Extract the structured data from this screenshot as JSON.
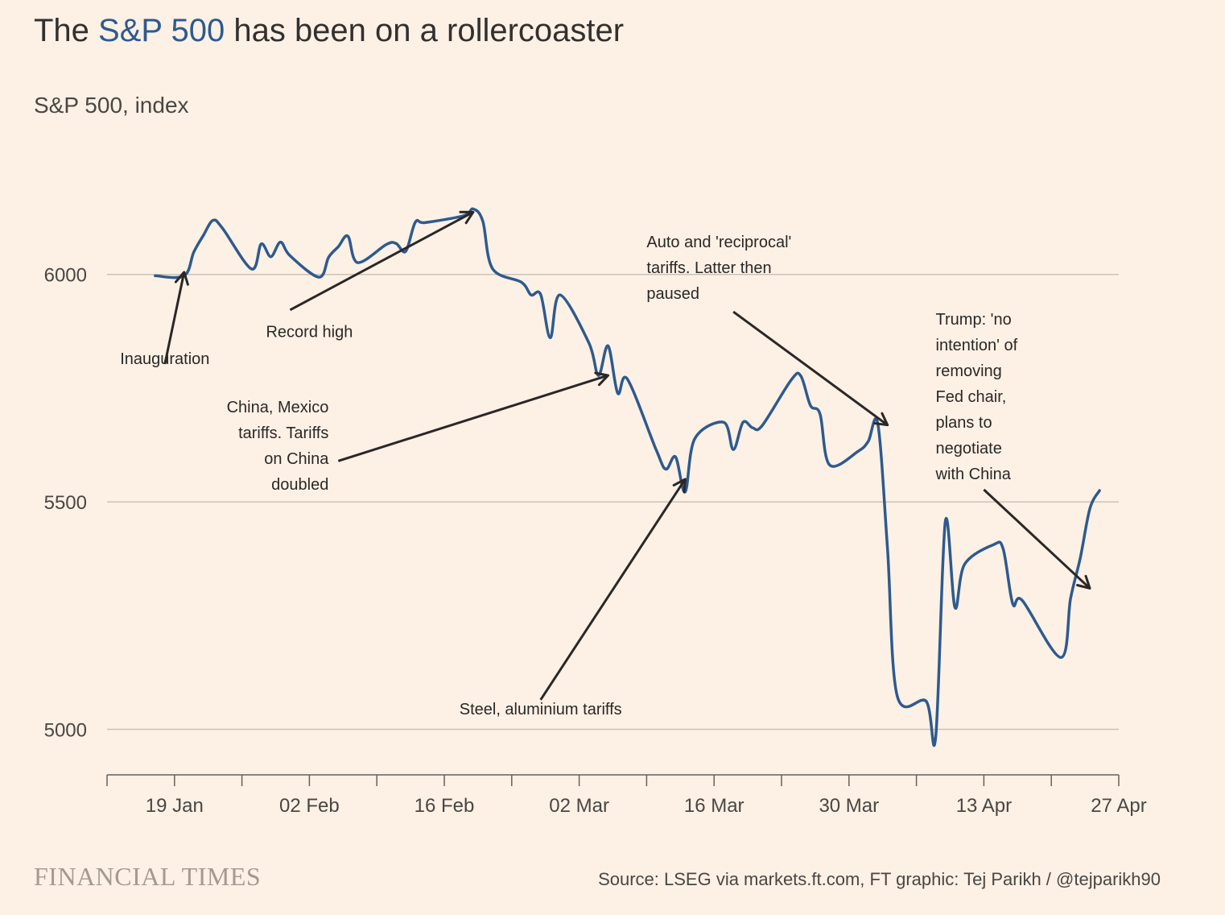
{
  "title": {
    "prefix": "The ",
    "highlight": "S&P 500",
    "suffix": " has been on a rollercoaster"
  },
  "subtitle": "S&P 500, index",
  "footer": {
    "logo": "FINANCIAL TIMES",
    "source": "Source: LSEG via markets.ft.com, FT graphic: Tej Parikh / @tejparikh90"
  },
  "colors": {
    "series": "#2e5a8e",
    "background": "#fdf1e6",
    "annotation": "#2b2726"
  },
  "chart_data": {
    "type": "line",
    "title": "The S&P 500 has been on a rollercoaster",
    "ylabel": "S&P 500, index",
    "ylim": [
      4900,
      6320
    ],
    "yticks": [
      5000,
      5500,
      6000
    ],
    "xlim": [
      "2025-01-12",
      "2025-04-27"
    ],
    "xticks": [
      {
        "date": "2025-01-19",
        "label": "19 Jan"
      },
      {
        "date": "2025-02-02",
        "label": "02 Feb"
      },
      {
        "date": "2025-02-16",
        "label": "16 Feb"
      },
      {
        "date": "2025-03-02",
        "label": "02 Mar"
      },
      {
        "date": "2025-03-16",
        "label": "16 Mar"
      },
      {
        "date": "2025-03-30",
        "label": "30 Mar"
      },
      {
        "date": "2025-04-13",
        "label": "13 Apr"
      },
      {
        "date": "2025-04-27",
        "label": "27 Apr"
      }
    ],
    "grid": true,
    "series": [
      {
        "name": "",
        "points": [
          [
            "2025-01-17",
            5997
          ],
          [
            "2025-01-20",
            5997
          ],
          [
            "2025-01-21",
            6049
          ],
          [
            "2025-01-22",
            6086
          ],
          [
            "2025-01-23",
            6119
          ],
          [
            "2025-01-24",
            6101
          ],
          [
            "2025-01-27",
            6012
          ],
          [
            "2025-01-28",
            6067
          ],
          [
            "2025-01-29",
            6039
          ],
          [
            "2025-01-30",
            6071
          ],
          [
            "2025-01-31",
            6041
          ],
          [
            "2025-02-03",
            5994
          ],
          [
            "2025-02-04",
            6038
          ],
          [
            "2025-02-05",
            6061
          ],
          [
            "2025-02-06",
            6084
          ],
          [
            "2025-02-07",
            6026
          ],
          [
            "2025-02-10",
            6066
          ],
          [
            "2025-02-11",
            6068
          ],
          [
            "2025-02-12",
            6051
          ],
          [
            "2025-02-13",
            6115
          ],
          [
            "2025-02-14",
            6114
          ],
          [
            "2025-02-18",
            6129
          ],
          [
            "2025-02-19",
            6144
          ],
          [
            "2025-02-20",
            6117
          ],
          [
            "2025-02-21",
            6013
          ],
          [
            "2025-02-24",
            5983
          ],
          [
            "2025-02-25",
            5955
          ],
          [
            "2025-02-26",
            5956
          ],
          [
            "2025-02-27",
            5861
          ],
          [
            "2025-02-28",
            5955
          ],
          [
            "2025-03-03",
            5850
          ],
          [
            "2025-03-04",
            5778
          ],
          [
            "2025-03-05",
            5843
          ],
          [
            "2025-03-06",
            5739
          ],
          [
            "2025-03-07",
            5770
          ],
          [
            "2025-03-10",
            5614
          ],
          [
            "2025-03-11",
            5572
          ],
          [
            "2025-03-12",
            5599
          ],
          [
            "2025-03-13",
            5522
          ],
          [
            "2025-03-14",
            5639
          ],
          [
            "2025-03-17",
            5675
          ],
          [
            "2025-03-18",
            5615
          ],
          [
            "2025-03-19",
            5675
          ],
          [
            "2025-03-20",
            5663
          ],
          [
            "2025-03-21",
            5668
          ],
          [
            "2025-03-24",
            5768
          ],
          [
            "2025-03-25",
            5777
          ],
          [
            "2025-03-26",
            5712
          ],
          [
            "2025-03-27",
            5693
          ],
          [
            "2025-03-28",
            5581
          ],
          [
            "2025-03-31",
            5612
          ],
          [
            "2025-04-01",
            5633
          ],
          [
            "2025-04-02",
            5671
          ],
          [
            "2025-04-03",
            5397
          ],
          [
            "2025-04-04",
            5074
          ],
          [
            "2025-04-07",
            5062
          ],
          [
            "2025-04-08",
            4983
          ],
          [
            "2025-04-09",
            5457
          ],
          [
            "2025-04-10",
            5268
          ],
          [
            "2025-04-11",
            5363
          ],
          [
            "2025-04-14",
            5406
          ],
          [
            "2025-04-15",
            5397
          ],
          [
            "2025-04-16",
            5276
          ],
          [
            "2025-04-17",
            5283
          ],
          [
            "2025-04-21",
            5158
          ],
          [
            "2025-04-22",
            5288
          ],
          [
            "2025-04-23",
            5376
          ],
          [
            "2025-04-24",
            5485
          ],
          [
            "2025-04-25",
            5525
          ]
        ]
      }
    ],
    "annotations": [
      {
        "text": [
          "Inauguration"
        ],
        "anchor": "middle",
        "label_at": [
          "2025-01-18",
          5803
        ],
        "arrow_from": [
          "2025-01-18",
          5803
        ],
        "arrow_to": [
          "2025-01-20",
          6005
        ]
      },
      {
        "text": [
          "Record high"
        ],
        "anchor": "middle",
        "label_at": [
          "2025-02-02",
          5862
        ],
        "arrow_from": [
          "2025-01-31",
          5922
        ],
        "arrow_to": [
          "2025-02-19",
          6137
        ]
      },
      {
        "text": [
          "China, Mexico",
          "tariffs. Tariffs",
          "on China",
          "doubled"
        ],
        "anchor": "end",
        "label_at": [
          "2025-02-04",
          5697
        ],
        "arrow_from": [
          "2025-02-05",
          5590
        ],
        "arrow_to": [
          "2025-03-05",
          5778
        ]
      },
      {
        "text": [
          "Steel, aluminium tariffs"
        ],
        "anchor": "middle",
        "label_at": [
          "2025-02-26",
          5033
        ],
        "arrow_from": [
          "2025-02-26",
          5065
        ],
        "arrow_to": [
          "2025-03-13",
          5550
        ]
      },
      {
        "text": [
          "Auto and 'reciprocal'",
          "tariffs. Latter then",
          "paused"
        ],
        "anchor": "start",
        "label_at": [
          "2025-03-09",
          6060
        ],
        "arrow_from": [
          "2025-03-18",
          5918
        ],
        "arrow_to": [
          "2025-04-03",
          5669
        ]
      },
      {
        "text": [
          "Trump: 'no",
          "intention' of",
          "removing",
          "Fed chair,",
          "plans to",
          "negotiate",
          "with China"
        ],
        "anchor": "start",
        "label_at": [
          "2025-04-08",
          5890
        ],
        "arrow_from": [
          "2025-04-13",
          5527
        ],
        "arrow_to": [
          "2025-04-24",
          5310
        ]
      }
    ]
  }
}
